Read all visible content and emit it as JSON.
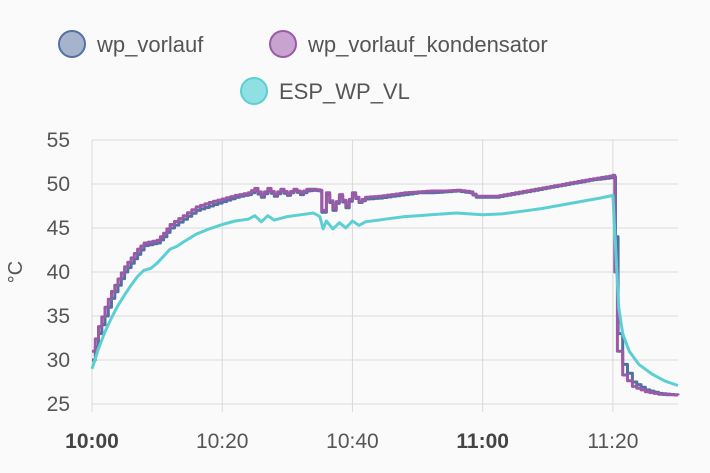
{
  "chart_data": {
    "type": "line",
    "ylabel": "°C",
    "xlabel": "",
    "ylim": [
      25,
      55
    ],
    "yticks": [
      25,
      30,
      35,
      40,
      45,
      50,
      55
    ],
    "xlim": [
      "10:00",
      "11:30"
    ],
    "xticks": [
      {
        "label": "10:00",
        "bold": true
      },
      {
        "label": "10:20",
        "bold": false
      },
      {
        "label": "10:40",
        "bold": false
      },
      {
        "label": "11:00",
        "bold": true
      },
      {
        "label": "11:20",
        "bold": false
      }
    ],
    "grid": true,
    "legend_position": "top-center",
    "series": [
      {
        "name": "wp_vorlauf",
        "color": "#5470a0",
        "fill": "#a5b4cc",
        "step": true,
        "points": [
          [
            "10:00",
            30
          ],
          [
            "10:01",
            33
          ],
          [
            "10:02",
            35
          ],
          [
            "10:03",
            37
          ],
          [
            "10:04",
            38.5
          ],
          [
            "10:05",
            40
          ],
          [
            "10:06",
            41
          ],
          [
            "10:07",
            42
          ],
          [
            "10:08",
            43
          ],
          [
            "10:10",
            43.3
          ],
          [
            "10:11",
            44
          ],
          [
            "10:12",
            45
          ],
          [
            "10:14",
            46
          ],
          [
            "10:16",
            47
          ],
          [
            "10:18",
            47.5
          ],
          [
            "10:20",
            48
          ],
          [
            "10:22",
            48.5
          ],
          [
            "10:24",
            48.8
          ],
          [
            "10:25",
            49.2
          ],
          [
            "10:26",
            48.5
          ],
          [
            "10:27",
            49.3
          ],
          [
            "10:28",
            48.6
          ],
          [
            "10:29",
            49.2
          ],
          [
            "10:30",
            48.7
          ],
          [
            "10:31",
            49.3
          ],
          [
            "10:32",
            48.8
          ],
          [
            "10:33",
            49.2
          ],
          [
            "10:34",
            49.3
          ],
          [
            "10:35",
            49.2
          ],
          [
            "10:35.3",
            46.8
          ],
          [
            "10:36",
            48.8
          ],
          [
            "10:37",
            47.0
          ],
          [
            "10:38",
            48.6
          ],
          [
            "10:39",
            47.3
          ],
          [
            "10:40",
            48.8
          ],
          [
            "10:41",
            47.9
          ],
          [
            "10:42",
            48.3
          ],
          [
            "10:44",
            48.4
          ],
          [
            "10:46",
            48.6
          ],
          [
            "10:48",
            48.8
          ],
          [
            "10:50",
            49.0
          ],
          [
            "10:52",
            49.0
          ],
          [
            "10:54",
            49.1
          ],
          [
            "10:56",
            49.2
          ],
          [
            "10:58",
            49.0
          ],
          [
            "10:59",
            48.5
          ],
          [
            "11:02",
            48.5
          ],
          [
            "11:05",
            48.9
          ],
          [
            "11:08",
            49.3
          ],
          [
            "11:11",
            49.7
          ],
          [
            "11:14",
            50.1
          ],
          [
            "11:17",
            50.5
          ],
          [
            "11:19.5",
            50.7
          ],
          [
            "11:20",
            50.8
          ],
          [
            "11:20.4",
            44
          ],
          [
            "11:20.8",
            33
          ],
          [
            "11:21.5",
            29.5
          ],
          [
            "11:23",
            27.5
          ],
          [
            "11:25",
            26.6
          ],
          [
            "11:27",
            26.2
          ],
          [
            "11:30",
            26.0
          ]
        ]
      },
      {
        "name": "wp_vorlauf_kondensator",
        "color": "#9a5aa8",
        "fill": "#c9a3cf",
        "step": true,
        "points": [
          [
            "10:00",
            31
          ],
          [
            "10:01",
            33.8
          ],
          [
            "10:02",
            36
          ],
          [
            "10:03",
            37.8
          ],
          [
            "10:04",
            39.2
          ],
          [
            "10:05",
            40.6
          ],
          [
            "10:06",
            41.6
          ],
          [
            "10:07",
            42.6
          ],
          [
            "10:08",
            43.3
          ],
          [
            "10:10",
            43.6
          ],
          [
            "10:11",
            44.4
          ],
          [
            "10:12",
            45.4
          ],
          [
            "10:14",
            46.4
          ],
          [
            "10:16",
            47.4
          ],
          [
            "10:18",
            47.9
          ],
          [
            "10:20",
            48.3
          ],
          [
            "10:22",
            48.7
          ],
          [
            "10:24",
            49.0
          ],
          [
            "10:25",
            49.5
          ],
          [
            "10:26",
            48.7
          ],
          [
            "10:27",
            49.5
          ],
          [
            "10:28",
            48.8
          ],
          [
            "10:29",
            49.4
          ],
          [
            "10:30",
            48.9
          ],
          [
            "10:31",
            49.4
          ],
          [
            "10:32",
            49.0
          ],
          [
            "10:33",
            49.4
          ],
          [
            "10:34",
            49.4
          ],
          [
            "10:35",
            49.3
          ],
          [
            "10:35.3",
            47.0
          ],
          [
            "10:36",
            49.0
          ],
          [
            "10:37",
            47.2
          ],
          [
            "10:38",
            48.8
          ],
          [
            "10:39",
            47.5
          ],
          [
            "10:40",
            49.0
          ],
          [
            "10:41",
            48.0
          ],
          [
            "10:42",
            48.5
          ],
          [
            "10:44",
            48.6
          ],
          [
            "10:46",
            48.8
          ],
          [
            "10:48",
            49.0
          ],
          [
            "10:50",
            49.1
          ],
          [
            "10:52",
            49.2
          ],
          [
            "10:54",
            49.2
          ],
          [
            "10:56",
            49.3
          ],
          [
            "10:58",
            49.1
          ],
          [
            "10:59",
            48.6
          ],
          [
            "11:02",
            48.6
          ],
          [
            "11:05",
            49.0
          ],
          [
            "11:08",
            49.4
          ],
          [
            "11:11",
            49.8
          ],
          [
            "11:14",
            50.2
          ],
          [
            "11:17",
            50.6
          ],
          [
            "11:19.5",
            50.9
          ],
          [
            "11:20",
            51.0
          ],
          [
            "11:20.3",
            40
          ],
          [
            "11:20.7",
            31
          ],
          [
            "11:21.5",
            28.3
          ],
          [
            "11:23",
            27.0
          ],
          [
            "11:25",
            26.4
          ],
          [
            "11:27",
            26.1
          ],
          [
            "11:30",
            26.0
          ]
        ]
      },
      {
        "name": "ESP_WP_VL",
        "color": "#5ccfd3",
        "fill": "#8ee0e3",
        "step": false,
        "points": [
          [
            "10:00",
            29
          ],
          [
            "10:01",
            31.3
          ],
          [
            "10:02",
            33.2
          ],
          [
            "10:03",
            34.8
          ],
          [
            "10:04",
            36.2
          ],
          [
            "10:05",
            37.4
          ],
          [
            "10:06",
            38.5
          ],
          [
            "10:07",
            39.5
          ],
          [
            "10:08",
            40.2
          ],
          [
            "10:09",
            40.4
          ],
          [
            "10:10",
            41.0
          ],
          [
            "10:11",
            41.8
          ],
          [
            "10:12",
            42.6
          ],
          [
            "10:13",
            42.9
          ],
          [
            "10:14",
            43.4
          ],
          [
            "10:16",
            44.3
          ],
          [
            "10:18",
            44.9
          ],
          [
            "10:20",
            45.4
          ],
          [
            "10:22",
            45.8
          ],
          [
            "10:24",
            46.0
          ],
          [
            "10:25",
            46.4
          ],
          [
            "10:26",
            45.7
          ],
          [
            "10:27",
            46.4
          ],
          [
            "10:28",
            45.9
          ],
          [
            "10:30",
            46.3
          ],
          [
            "10:32",
            46.5
          ],
          [
            "10:34",
            46.7
          ],
          [
            "10:35",
            46.3
          ],
          [
            "10:35.5",
            44.9
          ],
          [
            "10:36",
            45.8
          ],
          [
            "10:37",
            44.9
          ],
          [
            "10:38",
            45.6
          ],
          [
            "10:39",
            45.0
          ],
          [
            "10:40",
            45.8
          ],
          [
            "10:41",
            45.3
          ],
          [
            "10:42",
            45.7
          ],
          [
            "10:44",
            45.9
          ],
          [
            "10:46",
            46.1
          ],
          [
            "10:48",
            46.3
          ],
          [
            "10:50",
            46.4
          ],
          [
            "10:52",
            46.5
          ],
          [
            "10:54",
            46.6
          ],
          [
            "10:56",
            46.7
          ],
          [
            "10:58",
            46.6
          ],
          [
            "11:00",
            46.5
          ],
          [
            "11:03",
            46.6
          ],
          [
            "11:06",
            46.9
          ],
          [
            "11:09",
            47.2
          ],
          [
            "11:12",
            47.6
          ],
          [
            "11:15",
            48.0
          ],
          [
            "11:18",
            48.4
          ],
          [
            "11:20",
            48.7
          ],
          [
            "11:20.4",
            43
          ],
          [
            "11:20.9",
            36
          ],
          [
            "11:21.5",
            33.0
          ],
          [
            "11:22.5",
            31.0
          ],
          [
            "11:24",
            29.5
          ],
          [
            "11:26",
            28.4
          ],
          [
            "11:28",
            27.6
          ],
          [
            "11:30",
            27.1
          ]
        ]
      }
    ]
  }
}
